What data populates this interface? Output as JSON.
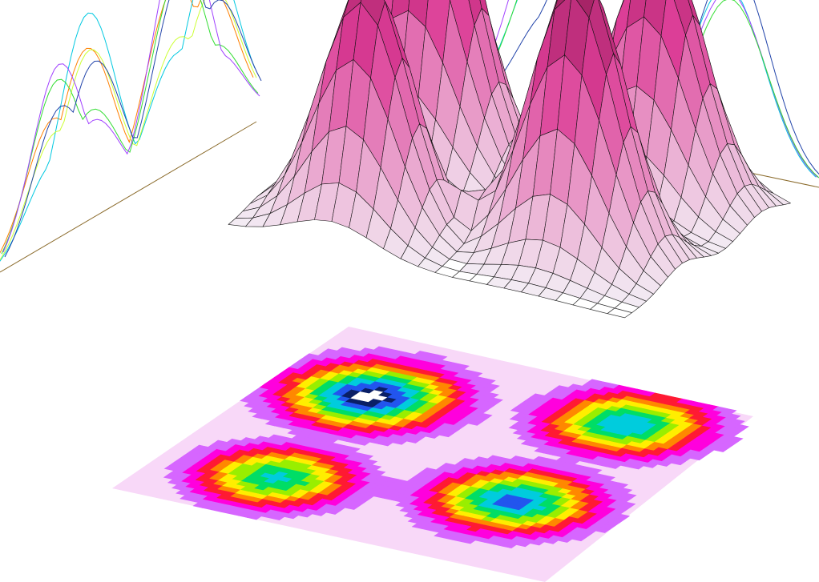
{
  "chart_data": {
    "type": "surface3d",
    "title": "",
    "xlabel": "",
    "ylabel": "",
    "zlabel": "",
    "grid": true,
    "legend": "none",
    "surface": {
      "grid_size": [
        24,
        24
      ],
      "x_range": [
        0,
        23
      ],
      "y_range": [
        0,
        23
      ],
      "z_range": [
        0,
        1
      ],
      "peaks": [
        {
          "name": "",
          "x": 6,
          "y": 5,
          "height": 0.74,
          "spread": 2.4
        },
        {
          "name": "",
          "x": 5,
          "y": 16,
          "height": 1.0,
          "spread": 2.6
        },
        {
          "name": "",
          "x": 17,
          "y": 8,
          "height": 0.86,
          "spread": 2.5
        },
        {
          "name": "",
          "x": 17,
          "y": 19,
          "height": 0.8,
          "spread": 2.5
        }
      ],
      "ridge": {
        "from": [
          6,
          5
        ],
        "to": [
          17,
          8
        ],
        "height": 0.16
      }
    },
    "projections": {
      "left_wall": {
        "series_colors": [
          "#ff7f00",
          "#00c8e0",
          "#ccff33",
          "#33dd33",
          "#a040ff",
          "#2244aa"
        ]
      },
      "right_wall": {
        "series_colors": [
          "#00c8e0",
          "#a040ff",
          "#33dd33",
          "#2244aa"
        ]
      }
    },
    "contour": {
      "levels": [
        0.08,
        0.16,
        0.25,
        0.34,
        0.43,
        0.52,
        0.62,
        0.72,
        0.82,
        0.92
      ],
      "colors": [
        "#d666ff",
        "#ff00dd",
        "#ff1a33",
        "#ff8800",
        "#ffee00",
        "#99ee00",
        "#00dd66",
        "#00ccdd",
        "#2255ee",
        "#0a1f66"
      ],
      "floor_color": "#f8d8f8",
      "peak_color": "#ffffff"
    },
    "colors": {
      "surface_low": "#f3eef5",
      "surface_high": "#7a1040",
      "edge": "#111111",
      "grid_line": "#333333"
    }
  }
}
